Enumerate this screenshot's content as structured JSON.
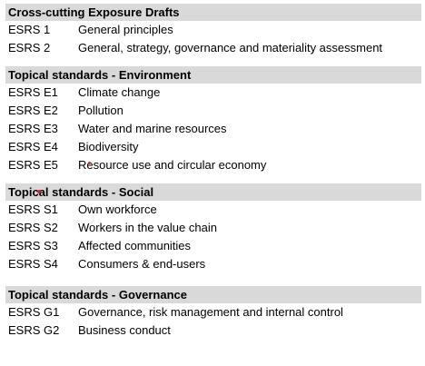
{
  "sections": [
    {
      "header": "Cross-cutting Exposure Drafts",
      "rows": [
        {
          "code": "ESRS 1",
          "title": "General principles"
        },
        {
          "code": "ESRS 2",
          "title": "General, strategy, governance and materiality assessment"
        }
      ]
    },
    {
      "header": "Topical standards - Environment",
      "rows": [
        {
          "code": "ESRS E1",
          "title": "Climate change"
        },
        {
          "code": "ESRS E2",
          "title": "Pollution"
        },
        {
          "code": "ESRS E3",
          "title": "Water and marine resources"
        },
        {
          "code": "ESRS E4",
          "title": "Biodiversity"
        },
        {
          "code": "ESRS E5",
          "title": "Resource use and circular economy"
        }
      ]
    },
    {
      "header": "Topical standards - Social",
      "rows": [
        {
          "code": "ESRS S1",
          "title": "Own workforce"
        },
        {
          "code": "ESRS S2",
          "title": "Workers in the value chain"
        },
        {
          "code": "ESRS S3",
          "title": "Affected communities"
        },
        {
          "code": "ESRS S4",
          "title": "Consumers & end-users"
        }
      ]
    },
    {
      "header": "Topical standards - Governance",
      "rows": [
        {
          "code": "ESRS G1",
          "title": "Governance, risk management and internal control"
        },
        {
          "code": "ESRS G2",
          "title": "Business conduct"
        }
      ]
    }
  ],
  "colors": {
    "header_background": "#d9d9d9",
    "annotation_dot": "#e0202a"
  }
}
